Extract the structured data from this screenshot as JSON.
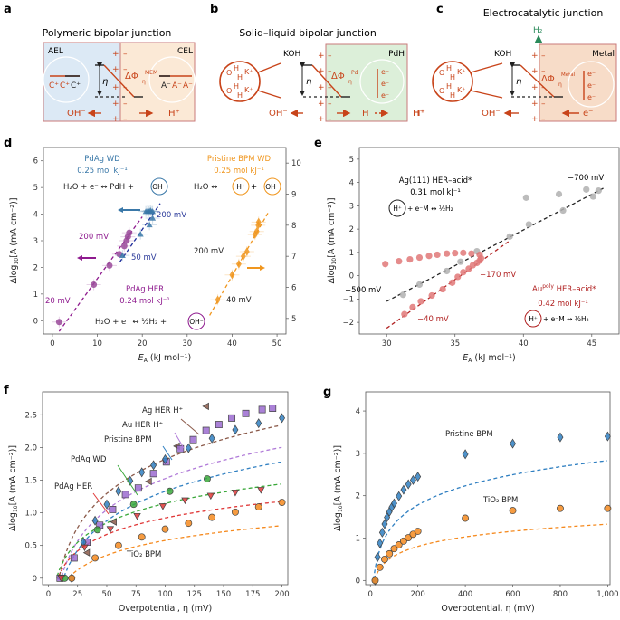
{
  "panel_labels": {
    "a": "a",
    "b": "b",
    "c": "c",
    "d": "d",
    "e": "e",
    "f": "f",
    "g": "g"
  },
  "colors": {
    "orange_red": "#c8441a",
    "ael_blue": "#dce9f5",
    "cel_peach": "#fbe9d6",
    "pdh_green": "#dcefd9",
    "metal_peach": "#f7dcc8",
    "box_border": "#c97a7a",
    "green_h2": "#2a8a5a",
    "pdag_wd_blue": "#3a78a8",
    "pdag_her_purple": "#8e1a8e",
    "pristine_orange": "#f0961e",
    "ag_grey": "#a0a0a0",
    "au_red": "#d86a6a",
    "au_line": "#b02020"
  },
  "panel_a": {
    "title": "Polymeric bipolar junction",
    "left_label": "AEL",
    "right_label": "CEL",
    "cations": [
      "C⁺",
      "C⁺",
      "C⁺"
    ],
    "anions": [
      "A⁻",
      "A⁻",
      "A⁻"
    ],
    "eta": "η",
    "delta_phi": "ΔΦ",
    "delta_phi_sup": "MEM",
    "delta_phi_sub": "η",
    "left_ion": "OH⁻",
    "right_ion": "H⁺",
    "plus": "+",
    "minus": "–"
  },
  "panel_b": {
    "title": "Solid–liquid bipolar junction",
    "electrolyte": "KOH",
    "electrode": "PdH",
    "eta": "η",
    "delta_phi": "ΔΦ",
    "delta_phi_sup": "Pd",
    "delta_phi_sub": "η",
    "left_ion": "OH⁻",
    "mid_species": "H",
    "right_species": "H⁺",
    "electrons": [
      "e⁻",
      "e⁻",
      "e⁻"
    ],
    "water_k": [
      "O",
      "H",
      "H",
      "K⁺"
    ]
  },
  "panel_c": {
    "title": "Electrocatalytic junction",
    "gas": "H₂",
    "electrolyte": "KOH",
    "electrode": "Metal",
    "eta": "η",
    "delta_phi": "ΔΦ",
    "delta_phi_sup": "Metal",
    "delta_phi_sub": "η",
    "left_ion": "OH⁻",
    "electron": "e⁻",
    "electrons": [
      "e⁻",
      "e⁻",
      "e⁻"
    ]
  },
  "chart_data": [
    {
      "id": "d",
      "type": "scatter",
      "xlabel": "E_A (kJ mol⁻¹)",
      "ylabel": "Δlog10[A (mA cm⁻²)]",
      "xlim": [
        -2,
        52
      ],
      "ylim": [
        -0.5,
        6.5
      ],
      "xticks": [
        0,
        10,
        20,
        30,
        40,
        50
      ],
      "yticks": [
        0,
        1,
        2,
        3,
        4,
        5,
        6
      ],
      "y2lim": [
        4.5,
        10.5
      ],
      "y2ticks": [
        5,
        6,
        7,
        8,
        9,
        10
      ],
      "annotations": {
        "pdag_wd_title": "PdAg WD",
        "pdag_wd_slope": "0.25 mol kJ⁻¹",
        "pdag_wd_eq": "H₂O + e⁻ ↔ PdH + ",
        "pdag_wd_circ": "OH⁻",
        "pristine_title": "Pristine BPM WD",
        "pristine_slope": "0.25 mol kJ⁻¹",
        "pristine_eq": "H₂O ↔ ",
        "pristine_circ1": "H⁺",
        "pristine_plus": " + ",
        "pristine_circ2": "OH⁻",
        "pdag_her_title": "PdAg HER",
        "pdag_her_slope": "0.24 mol kJ⁻¹",
        "pdag_her_eq": "H₂O + e⁻ ↔ ½H₂ + ",
        "pdag_her_circ": "OH⁻",
        "lbl_200_wd": "200 mV",
        "lbl_50_wd": "50 mV",
        "lbl_200_her": "200 mV",
        "lbl_20_her": "20 mV",
        "lbl_200_pristine": "200 mV",
        "lbl_40_pristine": "40 mV"
      },
      "series": [
        {
          "name": "PdAg HER",
          "marker": "circle",
          "axis": "left",
          "x": [
            1.5,
            9.2,
            12.7,
            14.9,
            16.0,
            16.5,
            16.8,
            17.1
          ],
          "y": [
            -0.05,
            1.35,
            2.07,
            2.5,
            2.8,
            3.0,
            3.15,
            3.3
          ]
        },
        {
          "name": "PdAg WD",
          "marker": "triangle",
          "axis": "left",
          "x": [
            15.6,
            19.6,
            21.6,
            22.3,
            20.8,
            21.2,
            21.5,
            21.8,
            22.0,
            22.3
          ],
          "y": [
            2.45,
            3.25,
            3.6,
            3.85,
            4.1,
            4.12,
            4.1,
            4.14,
            4.1,
            4.1
          ]
        },
        {
          "name": "Pristine BPM WD",
          "marker": "diamond",
          "axis": "right",
          "x": [
            36.8,
            40.0,
            41.5,
            42.5,
            43.3,
            45.1,
            45.5,
            45.8,
            45.9
          ],
          "y": [
            5.6,
            6.4,
            6.75,
            7.0,
            7.15,
            7.7,
            7.8,
            8.0,
            8.1
          ]
        }
      ],
      "fits": [
        {
          "name": "PdAg HER fit",
          "x": [
            1.5,
            20.0
          ],
          "y": [
            -0.4,
            3.9
          ]
        },
        {
          "name": "PdAg WD fit",
          "x": [
            15.0,
            24.0
          ],
          "y": [
            2.2,
            4.4
          ]
        },
        {
          "name": "Pristine fit",
          "x": [
            35.0,
            48.0
          ],
          "y": [
            5.1,
            8.4
          ],
          "axis": "right"
        }
      ],
      "arrows": [
        {
          "series": "PdAg WD",
          "dir": "left"
        },
        {
          "series": "PdAg HER",
          "dir": "left"
        },
        {
          "series": "Pristine",
          "dir": "right"
        }
      ]
    },
    {
      "id": "e",
      "type": "scatter",
      "xlabel": "E_A (kJ mol⁻¹)",
      "ylabel": "Δlog10[A (mA cm⁻²)]",
      "xlim": [
        28,
        47
      ],
      "ylim": [
        -2.5,
        5.5
      ],
      "xticks": [
        30,
        35,
        40,
        45
      ],
      "yticks": [
        -2,
        -1,
        0,
        1,
        2,
        3,
        4,
        5
      ],
      "annotations": {
        "ag_title": "Ag(111) HER–acid*",
        "ag_slope": "0.31 mol kJ⁻¹",
        "ag_circ": "H⁺",
        "ag_eq": " + e⁻M ↔ ½H₂",
        "au_title": "Au",
        "au_sup": "poly",
        "au_title_rest": " HER–acid*",
        "au_slope": "0.42 mol kJ⁻¹",
        "au_circ": "H⁺",
        "au_eq": " + e⁻M ↔ ½H₂",
        "lbl_700": "−700 mV",
        "lbl_500": "−500 mV",
        "lbl_170": "−170 mV",
        "lbl_40": "−40 mV"
      },
      "series": [
        {
          "name": "Ag(111) HER-acid",
          "marker": "circle",
          "x": [
            31.2,
            32.4,
            34.4,
            35.4,
            36.6,
            39.0,
            40.2,
            40.4,
            42.6,
            42.9,
            44.6,
            45.1,
            45.5
          ],
          "y": [
            -0.82,
            -0.38,
            0.2,
            0.6,
            1.05,
            1.68,
            3.35,
            2.2,
            3.5,
            2.8,
            3.7,
            3.4,
            3.65
          ]
        },
        {
          "name": "Au poly HER-acid",
          "marker": "circle",
          "x": [
            29.9,
            30.9,
            31.7,
            32.4,
            33.1,
            33.7,
            34.4,
            35.0,
            35.6,
            36.2,
            36.8,
            31.3,
            31.9,
            32.5,
            33.3,
            34.1,
            34.8,
            35.2,
            35.6,
            36.0,
            36.3,
            36.6,
            36.8,
            36.9
          ],
          "y": [
            0.5,
            0.62,
            0.7,
            0.78,
            0.85,
            0.9,
            0.95,
            0.97,
            0.98,
            0.95,
            0.9,
            -1.65,
            -1.35,
            -1.1,
            -0.85,
            -0.58,
            -0.3,
            -0.05,
            0.15,
            0.3,
            0.45,
            0.55,
            0.65,
            0.75
          ]
        }
      ],
      "fits": [
        {
          "name": "Ag fit",
          "x": [
            30.0,
            46.0
          ],
          "y": [
            -1.1,
            3.8
          ]
        },
        {
          "name": "Au fit",
          "x": [
            30.0,
            39.0
          ],
          "y": [
            -2.25,
            1.5
          ]
        }
      ]
    },
    {
      "id": "f",
      "type": "scatter",
      "xlabel": "Overpotential, η (mV)",
      "ylabel": "Δlog10[A (mA cm⁻²)]",
      "xlim": [
        -5,
        205
      ],
      "ylim": [
        -0.1,
        2.85
      ],
      "xticks": [
        0,
        25,
        50,
        75,
        100,
        125,
        150,
        175,
        200
      ],
      "yticks": [
        0,
        0.5,
        1.0,
        1.5,
        2.0,
        2.5
      ],
      "ytick_labels": [
        "0",
        "0.5",
        "1.0",
        "1.5",
        "2.0",
        "2.5"
      ],
      "series": [
        {
          "name": "Ag HER H⁺",
          "marker": "triangle-left",
          "color": "#8b5a4a",
          "x": [
            10,
            33,
            56,
            86,
            110,
            135
          ],
          "y": [
            0.0,
            0.39,
            0.86,
            1.48,
            2.02,
            2.63
          ]
        },
        {
          "name": "Au HER H⁺",
          "marker": "square",
          "color": "#9b6bd0",
          "x": [
            10,
            22,
            33,
            44,
            55,
            66,
            77,
            90,
            101,
            113,
            124,
            135,
            146,
            157,
            169,
            183,
            192
          ],
          "y": [
            0.0,
            0.31,
            0.55,
            0.81,
            1.05,
            1.28,
            1.38,
            1.6,
            1.78,
            1.98,
            2.12,
            2.26,
            2.35,
            2.45,
            2.52,
            2.58,
            2.6
          ]
        },
        {
          "name": "Pristine BPM",
          "marker": "diamond",
          "color": "#2f7fc1",
          "x": [
            20,
            30,
            40,
            50,
            60,
            70,
            80,
            90,
            100,
            120,
            140,
            160,
            180,
            200
          ],
          "y": [
            0.0,
            0.55,
            0.88,
            1.13,
            1.33,
            1.49,
            1.62,
            1.73,
            1.82,
            1.99,
            2.14,
            2.27,
            2.37,
            2.45
          ]
        },
        {
          "name": "PdAg WD",
          "marker": "circle",
          "color": "#3aa83a",
          "x": [
            14,
            42,
            73,
            104,
            136
          ],
          "y": [
            0.0,
            0.74,
            1.13,
            1.33,
            1.52
          ]
        },
        {
          "name": "PdAg HER",
          "marker": "triangle-down",
          "color": "#e03838",
          "x": [
            11,
            31,
            53,
            76,
            98,
            117,
            139,
            160,
            182
          ],
          "y": [
            0.0,
            0.47,
            0.75,
            0.95,
            1.1,
            1.19,
            1.26,
            1.31,
            1.35
          ]
        },
        {
          "name": "TiO₂ BPM",
          "marker": "circle",
          "color": "#f58a1f",
          "x": [
            20,
            40,
            60,
            80,
            100,
            120,
            140,
            160,
            180,
            200
          ],
          "y": [
            0.0,
            0.31,
            0.5,
            0.63,
            0.75,
            0.84,
            0.93,
            1.01,
            1.09,
            1.16
          ]
        }
      ],
      "fits": [
        {
          "name": "Ag fit",
          "color": "#8b5a4a",
          "a": 1.16,
          "x0": 9
        },
        {
          "name": "Au fit",
          "color": "#b07ad8",
          "a": 1.06,
          "x0": 11
        },
        {
          "name": "Pristine fit",
          "color": "#2f7fc1",
          "a": 1.0,
          "x0": 13
        },
        {
          "name": "PdAg WD fit",
          "color": "#3aa83a",
          "a": 0.66,
          "x0": 7
        },
        {
          "name": "PdAg HER fit",
          "color": "#e03838",
          "a": 0.56,
          "x0": 8
        },
        {
          "name": "TiO2 fit",
          "color": "#f58a1f",
          "a": 0.5,
          "x0": 17
        }
      ],
      "labels": {
        "ag": "Ag HER H⁺",
        "au": "Au HER H⁺",
        "pristine": "Pristine BPM",
        "pdag_wd": "PdAg WD",
        "pdag_her": "PdAg HER",
        "tio2": "TiO₂ BPM"
      }
    },
    {
      "id": "g",
      "type": "scatter",
      "xlabel": "Overpotential, η (mV)",
      "ylabel": "Δlog10[A (mA cm⁻²)]",
      "xlim": [
        -20,
        1010
      ],
      "ylim": [
        -0.1,
        4.45
      ],
      "xticks": [
        0,
        200,
        400,
        600,
        800,
        1000
      ],
      "xtick_labels": [
        "0",
        "200",
        "400",
        "600",
        "800",
        "1,000"
      ],
      "yticks": [
        0,
        1,
        2,
        3,
        4
      ],
      "series": [
        {
          "name": "Pristine BPM",
          "marker": "diamond",
          "color": "#2f7fc1",
          "x": [
            20,
            30,
            40,
            50,
            60,
            70,
            80,
            90,
            100,
            120,
            140,
            160,
            180,
            200,
            400,
            600,
            800,
            1000
          ],
          "y": [
            0.0,
            0.55,
            0.88,
            1.13,
            1.33,
            1.49,
            1.62,
            1.73,
            1.82,
            1.99,
            2.14,
            2.27,
            2.37,
            2.45,
            2.98,
            3.23,
            3.38,
            3.4
          ]
        },
        {
          "name": "TiO₂ BPM",
          "marker": "circle",
          "color": "#f58a1f",
          "x": [
            20,
            40,
            60,
            80,
            100,
            120,
            140,
            160,
            180,
            200,
            400,
            600,
            800,
            1000
          ],
          "y": [
            0.0,
            0.31,
            0.5,
            0.63,
            0.75,
            0.84,
            0.93,
            1.01,
            1.09,
            1.16,
            1.47,
            1.65,
            1.7,
            1.7
          ]
        }
      ],
      "fits": [
        {
          "name": "Pristine fit",
          "color": "#2f7fc1",
          "a": 1.0,
          "x0": 13
        },
        {
          "name": "TiO2 fit",
          "color": "#f58a1f",
          "a": 0.5,
          "x0": 17
        }
      ],
      "labels": {
        "pristine": "Pristine BPM",
        "tio2": "TiO₂ BPM"
      }
    }
  ]
}
